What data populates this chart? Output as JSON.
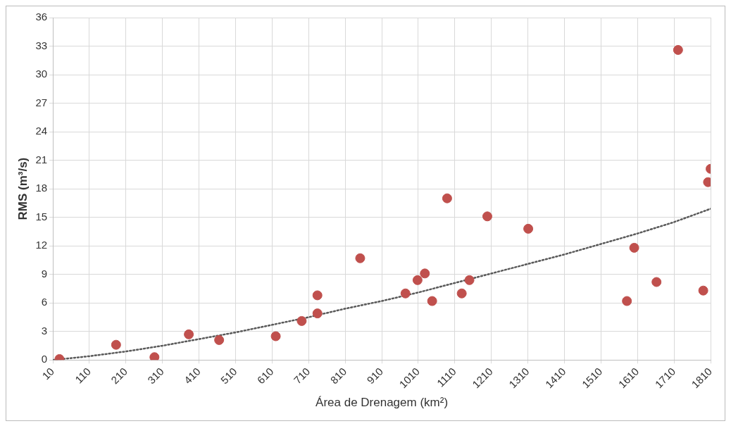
{
  "chart_data": {
    "type": "scatter",
    "xlabel": "Área de Drenagem (km²)",
    "ylabel": "RMS (m³/s)",
    "xlim": [
      10,
      1810
    ],
    "xticks": [
      10,
      110,
      210,
      310,
      410,
      510,
      610,
      710,
      810,
      910,
      1010,
      1110,
      1210,
      1310,
      1410,
      1510,
      1610,
      1710,
      1810
    ],
    "ylim": [
      0,
      36
    ],
    "yticks": [
      0,
      3,
      6,
      9,
      12,
      15,
      18,
      21,
      24,
      27,
      30,
      33,
      36
    ],
    "grid": true,
    "legend": false,
    "marker": "circle",
    "series": [
      {
        "color": "#c0504d",
        "x": [
          28,
          183,
          288,
          382,
          465,
          620,
          691,
          734,
          734,
          851,
          975,
          1008,
          1028,
          1048,
          1089,
          1129,
          1150,
          1199,
          1311,
          1581,
          1601,
          1662,
          1721,
          1790,
          1803,
          1810
        ],
        "values": [
          0.1,
          1.6,
          0.3,
          2.7,
          2.1,
          2.5,
          4.1,
          6.8,
          4.9,
          10.7,
          7.0,
          8.4,
          9.1,
          6.2,
          17.0,
          7.0,
          8.4,
          15.1,
          13.8,
          6.2,
          11.8,
          8.2,
          32.6,
          7.3,
          18.7,
          20.1
        ]
      },
      {
        "type": "line",
        "color": "#595959",
        "marker": "none",
        "line_style": "dotted",
        "x": [
          10,
          110,
          210,
          310,
          410,
          510,
          610,
          710,
          810,
          910,
          1010,
          1110,
          1210,
          1310,
          1410,
          1510,
          1610,
          1710,
          1810
        ],
        "values": [
          0,
          0.4,
          0.9,
          1.5,
          2.2,
          2.9,
          3.7,
          4.5,
          5.4,
          6.2,
          7.1,
          8.1,
          9.1,
          10.1,
          11.1,
          12.2,
          13.3,
          14.5,
          15.9
        ]
      }
    ]
  }
}
